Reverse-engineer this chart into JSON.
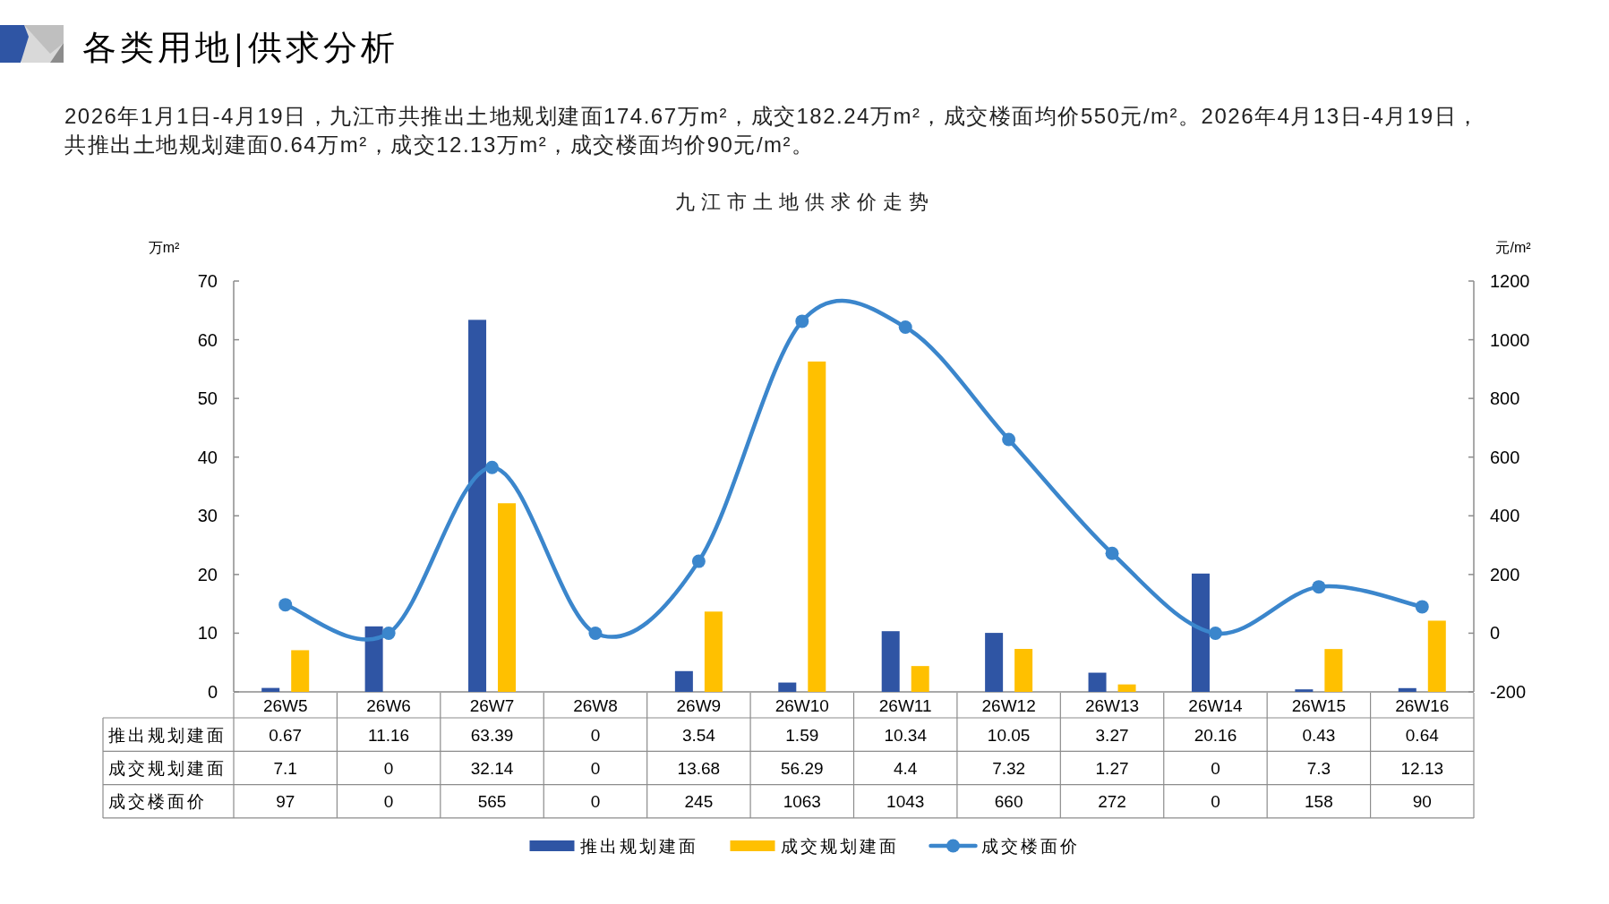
{
  "chart_data": {
    "type": "bar",
    "title": "九江市土地供求价走势",
    "annotations": [
      "各类用地|供求分析",
      "2026年1月1日-4月19日，九江市共推出土地规划建面174.67万m²，成交182.24万m²，成交楼面均价550元/m²。2026年4月13日-4月19日，共推出土地规划建面0.64万m²，成交12.13万m²，成交楼面均价90元/m²。"
    ],
    "ylabel": "万m²",
    "y2label": "元/m²",
    "categories": [
      "26W5",
      "26W6",
      "26W7",
      "26W8",
      "26W9",
      "26W10",
      "26W11",
      "26W12",
      "26W13",
      "26W14",
      "26W15",
      "26W16"
    ],
    "series": [
      {
        "name": "推出规划建面",
        "color": "#2f55a4",
        "values": [
          0.67,
          11.16,
          63.39,
          0,
          3.54,
          1.59,
          10.34,
          10.05,
          3.27,
          20.16,
          0.43,
          0.64
        ]
      },
      {
        "name": "成交规划建面",
        "color": "#ffc000",
        "values": [
          7.1,
          0,
          32.14,
          0,
          13.68,
          56.29,
          4.4,
          7.32,
          1.27,
          0,
          7.3,
          12.13
        ]
      },
      {
        "name": "成交楼面价",
        "type": "line",
        "axis": "y2",
        "color": "#3b86cc",
        "values": [
          97,
          0,
          565,
          0,
          245,
          1063,
          1043,
          660,
          272,
          0,
          158,
          90
        ]
      }
    ],
    "ylim": [
      0,
      70
    ],
    "yticks": [
      0,
      10,
      20,
      30,
      40,
      50,
      60,
      70
    ],
    "y2lim": [
      -200,
      1200
    ],
    "y2ticks": [
      -200,
      0,
      200,
      400,
      600,
      800,
      1000,
      1200
    ],
    "marker": "circle",
    "legend": "bottom",
    "data_labels": true
  }
}
